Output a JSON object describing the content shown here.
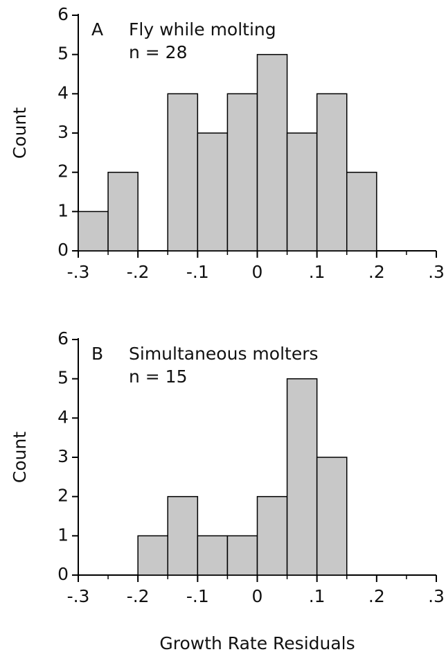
{
  "chart_data": [
    {
      "type": "histogram",
      "panel_label": "A",
      "title": "Fly while molting",
      "annotation": "n = 28",
      "ylabel": "Count",
      "bins": [
        -0.3,
        -0.25,
        -0.2,
        -0.15,
        -0.1,
        -0.05,
        0,
        0.05,
        0.1,
        0.15,
        0.2,
        0.25,
        0.3
      ],
      "values": [
        1,
        2,
        0,
        4,
        3,
        4,
        5,
        3,
        4,
        2,
        0,
        0
      ],
      "color": "#c8c8c8",
      "xlim": [
        -0.3,
        0.3
      ],
      "xticks": [
        {
          "value": -0.3,
          "label": "-.3"
        },
        {
          "value": -0.2,
          "label": "-.2"
        },
        {
          "value": -0.1,
          "label": "-.1"
        },
        0,
        {
          "value": 0.1,
          "label": ".1"
        },
        {
          "value": 0.2,
          "label": ".2"
        },
        {
          "value": 0.3,
          "label": ".3"
        }
      ],
      "ylim": [
        0,
        6
      ],
      "yticks": [
        0,
        1,
        2,
        3,
        4,
        5,
        6
      ]
    },
    {
      "type": "histogram",
      "panel_label": "B",
      "title": "Simultaneous molters",
      "annotation": "n = 15",
      "ylabel": "Count",
      "xlabel": "Growth Rate Residuals",
      "bins": [
        -0.3,
        -0.25,
        -0.2,
        -0.15,
        -0.1,
        -0.05,
        0,
        0.05,
        0.1,
        0.15,
        0.2,
        0.25,
        0.3
      ],
      "values": [
        0,
        0,
        1,
        2,
        1,
        1,
        2,
        5,
        3,
        0,
        0,
        0
      ],
      "color": "#c8c8c8",
      "xlim": [
        -0.3,
        0.3
      ],
      "xticks": [
        {
          "value": -0.3,
          "label": "-.3"
        },
        {
          "value": -0.2,
          "label": "-.2"
        },
        {
          "value": -0.1,
          "label": "-.1"
        },
        0,
        {
          "value": 0.1,
          "label": ".1"
        },
        {
          "value": 0.2,
          "label": ".2"
        },
        {
          "value": 0.3,
          "label": ".3"
        }
      ],
      "ylim": [
        0,
        6
      ],
      "yticks": [
        0,
        1,
        2,
        3,
        4,
        5,
        6
      ]
    }
  ]
}
